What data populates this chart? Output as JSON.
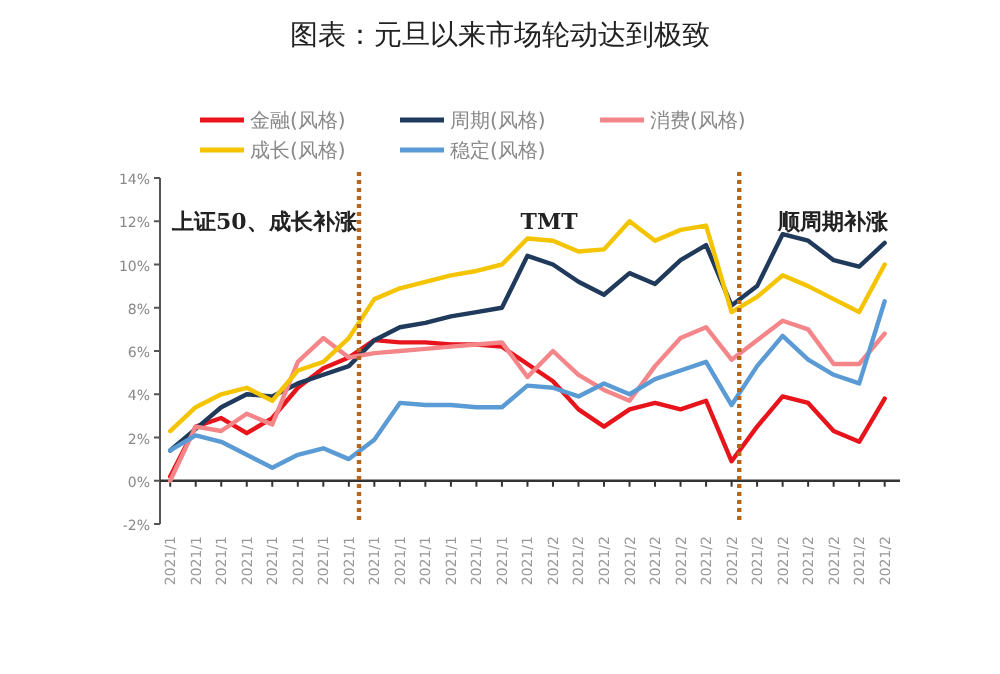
{
  "chart_data": {
    "type": "line",
    "title": "图表：元旦以来市场轮动达到极致",
    "categories": [
      "2021/1",
      "2021/1",
      "2021/1",
      "2021/1",
      "2021/1",
      "2021/1",
      "2021/1",
      "2021/1",
      "2021/1",
      "2021/1",
      "2021/1",
      "2021/1",
      "2021/1",
      "2021/1",
      "2021/1",
      "2021/2",
      "2021/2",
      "2021/2",
      "2021/2",
      "2021/2",
      "2021/2",
      "2021/2",
      "2021/2",
      "2021/2",
      "2021/2",
      "2021/2",
      "2021/2",
      "2021/2",
      "2021/2"
    ],
    "ylim": [
      -2,
      14
    ],
    "yticks": [
      {
        "value": -2,
        "label": "-2%"
      },
      {
        "value": 0,
        "label": "0%"
      },
      {
        "value": 2,
        "label": "2%"
      },
      {
        "value": 4,
        "label": "4%"
      },
      {
        "value": 6,
        "label": "6%"
      },
      {
        "value": 8,
        "label": "8%"
      },
      {
        "value": 10,
        "label": "10%"
      },
      {
        "value": 12,
        "label": "12%"
      },
      {
        "value": 14,
        "label": "14%"
      }
    ],
    "legend": "top",
    "marker": "none",
    "line_style": "solid",
    "series": [
      {
        "name": "金融(风格)",
        "color": "#e8141b",
        "values": [
          0.2,
          2.5,
          2.9,
          2.2,
          2.9,
          4.3,
          5.2,
          5.7,
          6.5,
          6.4,
          6.4,
          6.3,
          6.3,
          6.2,
          5.4,
          4.6,
          3.3,
          2.5,
          3.3,
          3.6,
          3.3,
          3.7,
          0.9,
          2.5,
          3.9,
          3.6,
          2.3,
          1.8,
          3.8
        ]
      },
      {
        "name": "周期(风格)",
        "color": "#1f3a5a",
        "values": [
          1.4,
          2.4,
          3.4,
          4.0,
          3.9,
          4.5,
          4.9,
          5.3,
          6.5,
          7.1,
          7.3,
          7.6,
          7.8,
          8.0,
          10.4,
          10.0,
          9.2,
          8.6,
          9.6,
          9.1,
          10.2,
          10.9,
          8.1,
          9.0,
          11.4,
          11.1,
          10.2,
          9.9,
          11.0
        ]
      },
      {
        "name": "消费(风格)",
        "color": "#f4868a",
        "values": [
          0.0,
          2.5,
          2.3,
          3.1,
          2.6,
          5.5,
          6.6,
          5.7,
          5.9,
          6.0,
          6.1,
          6.2,
          6.3,
          6.4,
          4.8,
          6.0,
          4.9,
          4.2,
          3.7,
          5.3,
          6.6,
          7.1,
          5.6,
          6.5,
          7.4,
          7.0,
          5.4,
          5.4,
          6.8
        ]
      },
      {
        "name": "成长(风格)",
        "color": "#f5c400",
        "values": [
          2.3,
          3.4,
          4.0,
          4.3,
          3.7,
          5.1,
          5.5,
          6.6,
          8.4,
          8.9,
          9.2,
          9.5,
          9.7,
          10.0,
          11.2,
          11.1,
          10.6,
          10.7,
          12.0,
          11.1,
          11.6,
          11.8,
          7.8,
          8.5,
          9.5,
          9.0,
          8.4,
          7.8,
          10.0
        ]
      },
      {
        "name": "稳定(风格)",
        "color": "#5b9bd5",
        "values": [
          1.4,
          2.1,
          1.8,
          1.2,
          0.6,
          1.2,
          1.5,
          1.0,
          1.9,
          3.6,
          3.5,
          3.5,
          3.4,
          3.4,
          4.4,
          4.3,
          3.9,
          4.5,
          4.0,
          4.7,
          5.1,
          5.5,
          3.5,
          5.3,
          6.7,
          5.6,
          4.9,
          4.5,
          8.3
        ]
      }
    ],
    "annotations": [
      "上证50、成长补涨",
      "TMT",
      "顺周期补涨"
    ]
  }
}
